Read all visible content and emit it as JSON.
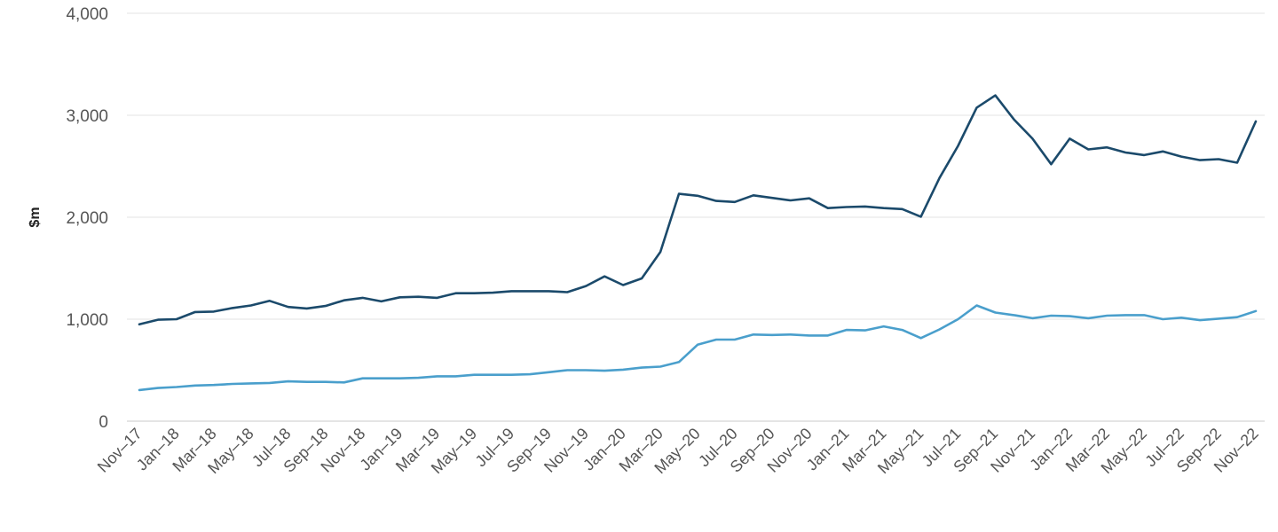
{
  "chart_data": {
    "type": "line",
    "xlabel": "",
    "ylabel": "$m",
    "ylim": [
      0,
      4000
    ],
    "yticks": [
      0,
      1000,
      2000,
      3000,
      4000
    ],
    "ytick_labels": [
      "0",
      "1,000",
      "2,000",
      "3,000",
      "4,000"
    ],
    "grid": true,
    "x": [
      "Nov-17",
      "Dec-17",
      "Jan-18",
      "Feb-18",
      "Mar-18",
      "Apr-18",
      "May-18",
      "Jun-18",
      "Jul-18",
      "Aug-18",
      "Sep-18",
      "Oct-18",
      "Nov-18",
      "Dec-18",
      "Jan-19",
      "Feb-19",
      "Mar-19",
      "Apr-19",
      "May-19",
      "Jun-19",
      "Jul-19",
      "Aug-19",
      "Sep-19",
      "Oct-19",
      "Nov-19",
      "Dec-19",
      "Jan-20",
      "Feb-20",
      "Mar-20",
      "Apr-20",
      "May-20",
      "Jun-20",
      "Jul-20",
      "Aug-20",
      "Sep-20",
      "Oct-20",
      "Nov-20",
      "Dec-20",
      "Jan-21",
      "Feb-21",
      "Mar-21",
      "Apr-21",
      "May-21",
      "Jun-21",
      "Jul-21",
      "Aug-21",
      "Sep-21",
      "Oct-21",
      "Nov-21",
      "Dec-21",
      "Jan-22",
      "Feb-22",
      "Mar-22",
      "Apr-22",
      "May-22",
      "Jun-22",
      "Jul-22",
      "Aug-22",
      "Sep-22",
      "Oct-22",
      "Nov-22"
    ],
    "x_tick_labels": [
      "Nov–17",
      "Jan–18",
      "Mar–18",
      "May–18",
      "Jul–18",
      "Sep–18",
      "Nov–18",
      "Jan–19",
      "Mar–19",
      "May–19",
      "Jul–19",
      "Sep–19",
      "Nov–19",
      "Jan–20",
      "Mar–20",
      "May–20",
      "Jul–20",
      "Sep–20",
      "Nov–20",
      "Jan–21",
      "Mar–21",
      "May–21",
      "Jul–21",
      "Sep–21",
      "Nov–21",
      "Jan–22",
      "Mar–22",
      "May–22",
      "Jul–22",
      "Sep–22",
      "Nov–22"
    ],
    "series": [
      {
        "color": "#1b4a6b",
        "values": [
          950,
          995,
          1000,
          1070,
          1075,
          1110,
          1135,
          1180,
          1120,
          1105,
          1130,
          1185,
          1210,
          1175,
          1215,
          1220,
          1210,
          1255,
          1255,
          1260,
          1275,
          1275,
          1275,
          1265,
          1325,
          1420,
          1335,
          1400,
          1660,
          2230,
          2210,
          2160,
          2150,
          2215,
          2190,
          2165,
          2185,
          2090,
          2100,
          2105,
          2090,
          2080,
          2005,
          2385,
          2700,
          3075,
          3195,
          2960,
          2770,
          2520,
          2770,
          2665,
          2685,
          2635,
          2610,
          2645,
          2595,
          2560,
          2570,
          2535,
          2940
        ]
      },
      {
        "color": "#4a9fcc",
        "values": [
          305,
          325,
          335,
          350,
          355,
          365,
          370,
          375,
          390,
          385,
          385,
          380,
          420,
          420,
          420,
          425,
          440,
          440,
          455,
          455,
          455,
          460,
          480,
          500,
          500,
          495,
          505,
          525,
          535,
          580,
          750,
          800,
          800,
          850,
          845,
          850,
          840,
          840,
          895,
          890,
          930,
          895,
          815,
          900,
          1000,
          1135,
          1065,
          1040,
          1010,
          1035,
          1030,
          1010,
          1035,
          1040,
          1040,
          1000,
          1015,
          990,
          1005,
          1020,
          1080
        ]
      }
    ]
  }
}
